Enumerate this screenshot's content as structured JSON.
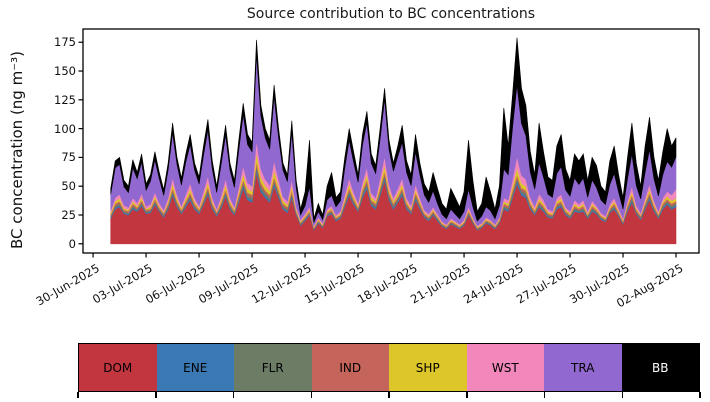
{
  "chart_data": {
    "type": "area",
    "stacked": true,
    "title": "Source contribution to BC concentrations",
    "ylabel": "BC concentration (ng m⁻³)",
    "xlabel": "",
    "grid": false,
    "legend_position": "bottom-colorbar-strip",
    "yticks": [
      0,
      25,
      50,
      75,
      100,
      125,
      150,
      175
    ],
    "ylim": [
      -8,
      186.5
    ],
    "xtick_labels": [
      "30-Jun-2025",
      "03-Jul-2025",
      "06-Jul-2025",
      "09-Jul-2025",
      "12-Jul-2025",
      "15-Jul-2025",
      "18-Jul-2025",
      "21-Jul-2025",
      "24-Jul-2025",
      "27-Jul-2025",
      "30-Jul-2025",
      "02-Aug-2025"
    ],
    "xtick_days": [
      0,
      3,
      6,
      9,
      12,
      15,
      18,
      21,
      24,
      27,
      30,
      33
    ],
    "xlim_days": [
      -0.57,
      34.3
    ],
    "x_unit": "days since 30-Jun-2025 00:00",
    "x_start_day": 1.0,
    "x_step_days": 0.25,
    "series_meta": [
      {
        "name": "DOM",
        "color": "#c1363f",
        "text_color": "#000000"
      },
      {
        "name": "ENE",
        "color": "#3a79b3",
        "text_color": "#000000"
      },
      {
        "name": "FLR",
        "color": "#6d7c65",
        "text_color": "#000000"
      },
      {
        "name": "IND",
        "color": "#c4645a",
        "text_color": "#000000"
      },
      {
        "name": "SHP",
        "color": "#ddc629",
        "text_color": "#000000"
      },
      {
        "name": "WST",
        "color": "#f187bb",
        "text_color": "#000000"
      },
      {
        "name": "TRA",
        "color": "#9168cf",
        "text_color": "#000000"
      },
      {
        "name": "BB",
        "color": "#000000",
        "text_color": "#ffffff"
      }
    ],
    "rows_columns": [
      "DOM",
      "ENE",
      "FLR",
      "IND",
      "SHP",
      "WST",
      "TRA",
      "BB"
    ],
    "rows": [
      [
        22,
        1,
        1,
        1.5,
        1.5,
        2,
        14,
        5
      ],
      [
        30,
        1.5,
        1.5,
        2,
        2,
        3,
        26,
        6
      ],
      [
        32,
        1.5,
        1.5,
        2,
        2.5,
        3.5,
        26,
        6
      ],
      [
        26,
        1,
        1,
        1.5,
        1.5,
        2.5,
        16,
        5.5
      ],
      [
        25,
        1,
        1,
        1.5,
        1,
        2,
        13,
        5.5
      ],
      [
        30,
        1.5,
        1.5,
        2,
        2,
        3,
        26,
        7
      ],
      [
        28,
        1,
        1,
        1.5,
        1.5,
        2.5,
        21,
        5.5
      ],
      [
        33,
        1.5,
        1.5,
        2,
        2.5,
        3.5,
        27,
        7
      ],
      [
        26,
        1,
        1,
        1.5,
        1,
        2,
        14,
        5.5
      ],
      [
        27,
        1,
        1,
        1.5,
        1.5,
        2.5,
        20,
        5.5
      ],
      [
        34,
        1.5,
        1.5,
        2,
        2.5,
        3.5,
        28,
        7
      ],
      [
        28,
        1,
        1,
        1.5,
        1.5,
        2.5,
        21,
        5.5
      ],
      [
        23,
        1,
        1,
        1.5,
        1,
        2,
        12.5,
        5
      ],
      [
        30,
        1.5,
        1.5,
        2,
        2,
        3,
        24,
        6
      ],
      [
        42,
        2,
        2,
        2.5,
        4,
        5,
        39,
        8.5
      ],
      [
        32,
        1.5,
        1.5,
        2,
        2.5,
        3.5,
        26,
        6
      ],
      [
        26,
        1,
        1,
        1.5,
        1.5,
        2,
        18,
        6
      ],
      [
        32,
        1.5,
        1.5,
        2,
        2.5,
        3.5,
        28,
        7
      ],
      [
        38,
        2,
        2,
        2.5,
        3.5,
        4.5,
        34,
        8.5
      ],
      [
        30,
        1.5,
        1.5,
        2,
        2,
        3,
        24,
        6
      ],
      [
        26,
        1,
        1,
        1.5,
        1.5,
        2,
        19,
        6
      ],
      [
        34,
        1.5,
        1.5,
        2,
        3,
        4,
        31,
        8
      ],
      [
        43,
        2,
        2,
        2.5,
        4,
        5.5,
        40,
        9
      ],
      [
        30,
        1.5,
        1.5,
        2,
        2,
        3,
        25,
        7
      ],
      [
        24,
        1,
        1,
        1.5,
        1,
        2,
        14,
        5.5
      ],
      [
        31,
        1.5,
        1.5,
        2,
        2.5,
        3.5,
        27,
        7
      ],
      [
        41,
        2,
        2,
        2.5,
        4,
        5,
        38,
        8.5
      ],
      [
        30,
        1.5,
        1.5,
        2,
        2,
        3,
        24,
        6
      ],
      [
        25,
        1,
        1,
        1.5,
        1.5,
        2,
        17,
        6
      ],
      [
        36,
        2,
        2,
        2.5,
        3,
        4,
        32,
        8.5
      ],
      [
        48,
        2.5,
        2.5,
        3,
        5,
        6.5,
        45,
        9.5
      ],
      [
        38,
        2,
        2,
        2.5,
        3.5,
        5,
        33,
        9
      ],
      [
        36,
        2,
        2,
        2.5,
        3,
        4.5,
        30,
        8
      ],
      [
        62,
        3,
        3,
        3.5,
        8,
        10,
        75,
        12.5
      ],
      [
        45,
        2.5,
        2.5,
        3,
        5,
        7,
        46,
        9
      ],
      [
        40,
        2,
        2,
        2.5,
        4,
        5.5,
        36,
        8
      ],
      [
        36,
        2,
        2,
        2.5,
        3.5,
        5,
        31,
        8
      ],
      [
        50,
        2.5,
        2.5,
        3,
        6,
        8,
        56,
        10
      ],
      [
        40,
        2,
        2,
        2.5,
        4,
        5.5,
        36,
        8
      ],
      [
        30,
        1.5,
        1.5,
        2,
        2.5,
        3.5,
        23,
        6
      ],
      [
        27,
        1.5,
        1.5,
        2,
        2,
        3,
        17,
        6
      ],
      [
        40,
        2,
        2,
        2.5,
        4,
        5.5,
        41,
        10
      ],
      [
        25,
        1,
        1,
        1.5,
        1.5,
        2.5,
        16,
        6.5
      ],
      [
        16,
        0.8,
        0.8,
        1,
        1,
        1.5,
        4,
        5
      ],
      [
        20,
        1,
        1,
        1.2,
        1.2,
        1.8,
        7,
        12
      ],
      [
        25,
        1,
        1,
        1.5,
        1.5,
        2.5,
        17,
        40.5
      ],
      [
        12,
        0.6,
        0.6,
        0.8,
        0.7,
        1,
        3,
        3.3
      ],
      [
        18,
        0.8,
        0.8,
        1,
        1,
        1.5,
        5,
        7
      ],
      [
        14,
        0.6,
        0.6,
        0.8,
        0.8,
        1.2,
        3,
        4
      ],
      [
        24,
        1,
        1,
        1.2,
        1.2,
        1.8,
        8,
        11.8
      ],
      [
        26,
        1,
        1,
        1.5,
        1.5,
        2,
        9,
        20
      ],
      [
        20,
        0.8,
        0.8,
        1,
        1,
        1.5,
        7,
        8
      ],
      [
        22,
        1,
        1,
        1.2,
        1.2,
        1.8,
        9,
        7.8
      ],
      [
        32,
        1.5,
        1.5,
        2,
        2.5,
        3.5,
        23,
        9
      ],
      [
        42,
        2,
        2,
        2.5,
        3.5,
        5,
        33,
        10
      ],
      [
        34,
        1.5,
        1.5,
        2,
        2.5,
        3.5,
        26,
        9
      ],
      [
        28,
        1,
        1,
        1.5,
        1.5,
        2.5,
        18,
        6.5
      ],
      [
        40,
        2,
        2,
        2.5,
        3,
        4.5,
        32,
        9
      ],
      [
        48,
        2.5,
        2.5,
        3,
        4.5,
        6,
        39,
        9.5
      ],
      [
        33,
        1.5,
        1.5,
        2,
        2.5,
        3.5,
        26,
        8
      ],
      [
        30,
        1.5,
        1.5,
        2,
        2,
        3,
        21,
        7
      ],
      [
        42,
        2,
        2,
        2.5,
        3.5,
        5,
        34,
        9
      ],
      [
        55,
        2.5,
        2.5,
        3,
        5.5,
        7.5,
        50,
        9
      ],
      [
        38,
        2,
        2,
        2.5,
        3,
        4.5,
        30,
        8
      ],
      [
        30,
        1.5,
        1.5,
        2,
        2,
        3,
        23,
        7
      ],
      [
        36,
        1.5,
        1.5,
        2,
        3,
        4,
        28,
        9
      ],
      [
        42,
        2,
        2,
        2.5,
        3.5,
        5,
        31,
        15
      ],
      [
        30,
        1.5,
        1.5,
        2,
        2,
        3,
        22,
        10
      ],
      [
        26,
        1,
        1,
        1.5,
        1.5,
        2.5,
        17,
        9.5
      ],
      [
        38,
        2,
        2,
        2.5,
        3,
        4.5,
        28,
        15
      ],
      [
        30,
        1.5,
        1.5,
        2,
        2,
        3,
        20,
        10
      ],
      [
        23,
        1,
        1,
        1.5,
        1,
        2,
        13,
        9.5
      ],
      [
        20,
        1,
        1,
        1.2,
        1,
        1.8,
        10,
        9
      ],
      [
        25,
        1,
        1,
        1.5,
        1.5,
        2,
        14,
        16
      ],
      [
        20,
        1,
        1,
        1.2,
        1,
        1.8,
        9,
        13
      ],
      [
        15,
        0.8,
        0.8,
        1,
        0.8,
        1.2,
        6,
        9.4
      ],
      [
        13,
        0.6,
        0.6,
        0.8,
        0.8,
        1,
        5,
        8.2
      ],
      [
        17,
        0.8,
        0.8,
        1,
        1,
        1.5,
        8,
        18
      ],
      [
        15,
        0.8,
        0.8,
        1,
        1,
        1.2,
        6,
        14.4
      ],
      [
        13,
        0.6,
        0.6,
        0.8,
        0.8,
        1,
        5,
        10.2
      ],
      [
        16,
        0.8,
        0.8,
        1,
        1,
        1.5,
        7,
        17
      ],
      [
        25,
        1,
        1,
        1.5,
        1.5,
        2.5,
        15,
        42.5
      ],
      [
        18,
        0.8,
        0.8,
        1,
        1,
        1.5,
        9,
        23
      ],
      [
        12,
        0.6,
        0.6,
        0.8,
        0.8,
        1,
        4,
        8.2
      ],
      [
        14,
        0.6,
        0.6,
        0.8,
        0.8,
        1.2,
        6,
        11
      ],
      [
        18,
        0.8,
        0.8,
        1,
        1,
        1.5,
        9,
        26
      ],
      [
        16,
        0.8,
        0.8,
        1,
        1,
        1.2,
        8,
        16.4
      ],
      [
        13,
        0.6,
        0.6,
        0.8,
        0.8,
        1,
        5,
        8.2
      ],
      [
        18,
        0.8,
        0.8,
        1,
        1,
        1.5,
        10,
        17
      ],
      [
        30,
        1.5,
        1.5,
        2,
        2,
        3,
        25,
        53
      ],
      [
        28,
        1.5,
        1.5,
        2,
        2,
        3,
        22,
        25
      ],
      [
        40,
        2,
        2,
        2.5,
        4,
        6,
        45,
        28.5
      ],
      [
        52,
        2.5,
        2.5,
        3,
        6,
        10,
        62,
        41
      ],
      [
        42,
        2,
        2,
        2.5,
        4,
        7,
        45,
        30.5
      ],
      [
        40,
        2,
        2,
        2.5,
        3.5,
        6,
        38,
        26
      ],
      [
        30,
        1.5,
        1.5,
        2,
        2,
        3.5,
        22,
        17.5
      ],
      [
        25,
        1,
        1,
        1.5,
        1.5,
        2.5,
        15,
        12.5
      ],
      [
        32,
        1.5,
        1.5,
        2,
        2.5,
        4,
        27,
        34.5
      ],
      [
        28,
        1.5,
        1.5,
        2,
        2,
        3,
        20,
        22
      ],
      [
        23,
        1,
        1,
        1.5,
        1.5,
        2,
        13,
        15
      ],
      [
        22,
        1,
        1,
        1.2,
        1.2,
        2,
        12,
        14.6
      ],
      [
        30,
        1.5,
        1.5,
        2,
        2,
        3,
        21,
        24
      ],
      [
        32,
        1.5,
        1.5,
        2,
        2.5,
        3.5,
        24,
        28
      ],
      [
        25,
        1,
        1,
        1.5,
        1.5,
        2,
        15,
        18
      ],
      [
        22,
        1,
        1,
        1.2,
        1.2,
        2,
        13,
        13.6
      ],
      [
        28,
        1.5,
        1.5,
        2,
        2,
        3,
        19,
        21
      ],
      [
        27,
        1,
        1,
        1.5,
        1.5,
        2.5,
        17,
        20.5
      ],
      [
        28,
        1.5,
        1.5,
        2,
        2,
        3,
        19,
        21
      ],
      [
        22,
        1,
        1,
        1.2,
        1.2,
        2,
        12,
        14.6
      ],
      [
        28,
        1.5,
        1.5,
        2,
        2,
        2.5,
        18,
        19.5
      ],
      [
        26,
        1,
        1,
        1.5,
        1.5,
        2,
        16,
        19
      ],
      [
        21,
        1,
        1,
        1.2,
        1,
        1.8,
        11,
        12
      ],
      [
        19,
        0.8,
        0.8,
        1,
        1,
        1.5,
        10,
        11
      ],
      [
        27,
        1,
        1,
        1.5,
        1.5,
        2.5,
        17,
        20.5
      ],
      [
        30,
        1.5,
        1.5,
        2,
        2,
        3,
        21,
        24
      ],
      [
        24,
        1,
        1,
        1.5,
        1.5,
        2,
        14,
        15
      ],
      [
        17,
        0.8,
        0.8,
        1,
        1,
        1.5,
        8,
        10
      ],
      [
        28,
        1.5,
        1.5,
        2,
        2,
        2.5,
        19,
        18.5
      ],
      [
        36,
        2,
        2,
        2.5,
        3,
        4.5,
        28,
        27
      ],
      [
        26,
        1,
        1,
        1.5,
        1.5,
        2.5,
        17,
        19.5
      ],
      [
        21,
        1,
        1,
        1.2,
        1,
        1.8,
        12,
        11
      ],
      [
        30,
        1.5,
        1.5,
        2,
        2,
        3,
        22,
        23
      ],
      [
        38,
        2,
        2,
        2.5,
        3,
        4.5,
        30,
        28
      ],
      [
        28,
        1.5,
        1.5,
        2,
        2,
        2.5,
        19,
        18.5
      ],
      [
        22,
        1,
        1,
        1.2,
        1.2,
        2,
        13,
        13.6
      ],
      [
        30,
        1.5,
        1.5,
        2,
        2,
        3,
        20,
        20
      ],
      [
        34,
        1.5,
        1.5,
        2,
        2.5,
        4,
        26,
        28.5
      ],
      [
        30,
        1.5,
        1.5,
        2,
        2.5,
        5,
        24,
        18.5
      ],
      [
        32,
        1.5,
        1.5,
        2,
        2.5,
        8,
        28,
        16.5
      ]
    ]
  }
}
